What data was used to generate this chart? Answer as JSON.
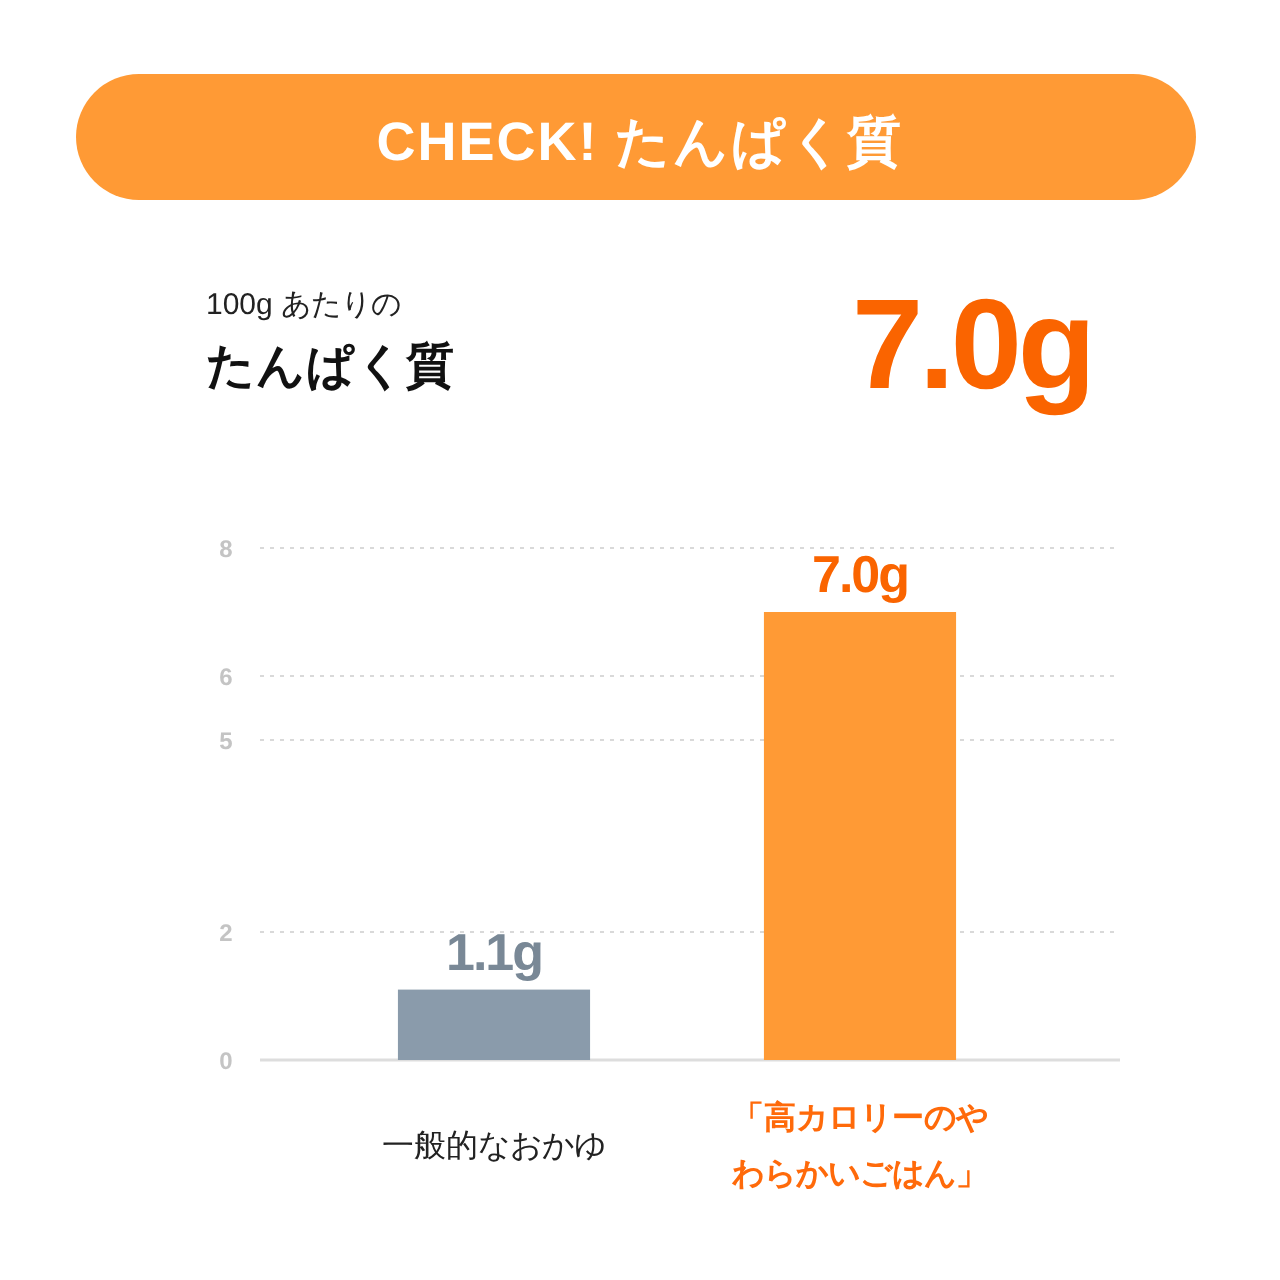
{
  "chart_data": {
    "type": "bar",
    "title": "CHECK! たんぱく質",
    "subtitle": "100g あたりの",
    "annotations": [
      "たんぱく質",
      "7.0g"
    ],
    "categories": [
      "一般的なおかゆ",
      "「高カロリーのやわらかいごはん」"
    ],
    "values": [
      1.1,
      7.0
    ],
    "colors": [
      "#8a9bab",
      "#ff9a35"
    ],
    "value_labels": [
      "1.1g",
      "7.0g"
    ],
    "ylim": [
      0,
      8
    ],
    "yticks": [
      0,
      2,
      5,
      6,
      8
    ],
    "grid": "y"
  }
}
